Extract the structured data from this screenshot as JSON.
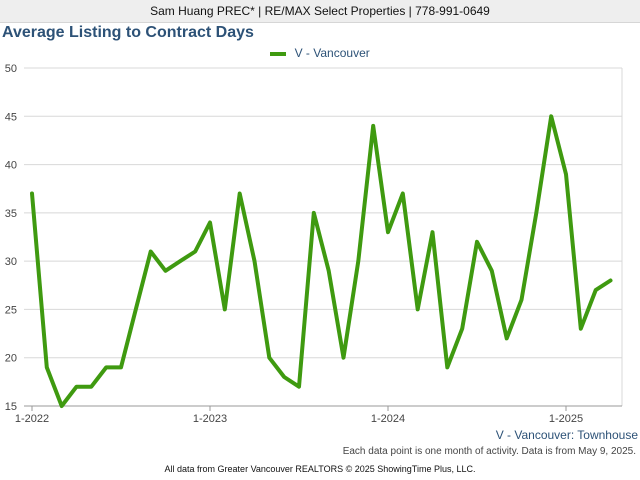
{
  "header": {
    "agent_line": "Sam Huang PREC* | RE/MAX Select Properties | 778-991-0649"
  },
  "chart_title": "Average Listing to Contract Days",
  "series_caption": "V - Vancouver: Townhouse",
  "data_note": "Each data point is one month of activity. Data is from May 9, 2025.",
  "footer": "All data from Greater Vancouver REALTORS © 2025 ShowingTime Plus, LLC.",
  "colors": {
    "line": "#3f9a10",
    "title": "#2d5277",
    "grid": "#d8d8d8"
  },
  "chart_data": {
    "type": "line",
    "title": "Average Listing to Contract Days",
    "x_tick_labels": [
      "1-2022",
      "1-2023",
      "1-2024",
      "1-2025"
    ],
    "y_tick_labels": [
      "15",
      "20",
      "25",
      "30",
      "35",
      "40",
      "45",
      "50"
    ],
    "ylim": [
      15,
      50
    ],
    "grid": true,
    "legend_position": "top-center",
    "x": [
      "2022-01",
      "2022-02",
      "2022-03",
      "2022-04",
      "2022-05",
      "2022-06",
      "2022-07",
      "2022-08",
      "2022-09",
      "2022-10",
      "2022-11",
      "2022-12",
      "2023-01",
      "2023-02",
      "2023-03",
      "2023-04",
      "2023-05",
      "2023-06",
      "2023-07",
      "2023-08",
      "2023-09",
      "2023-10",
      "2023-11",
      "2023-12",
      "2024-01",
      "2024-02",
      "2024-03",
      "2024-04",
      "2024-05",
      "2024-06",
      "2024-07",
      "2024-08",
      "2024-09",
      "2024-10",
      "2024-11",
      "2024-12",
      "2025-01",
      "2025-02",
      "2025-03",
      "2025-04"
    ],
    "series": [
      {
        "name": "V - Vancouver",
        "values": [
          37,
          19,
          15,
          17,
          17,
          19,
          19,
          25,
          31,
          29,
          30,
          31,
          34,
          25,
          37,
          30,
          20,
          18,
          17,
          35,
          29,
          20,
          30,
          44,
          33,
          37,
          25,
          33,
          19,
          23,
          32,
          29,
          22,
          26,
          35,
          45,
          39,
          23,
          27,
          28
        ]
      }
    ]
  }
}
